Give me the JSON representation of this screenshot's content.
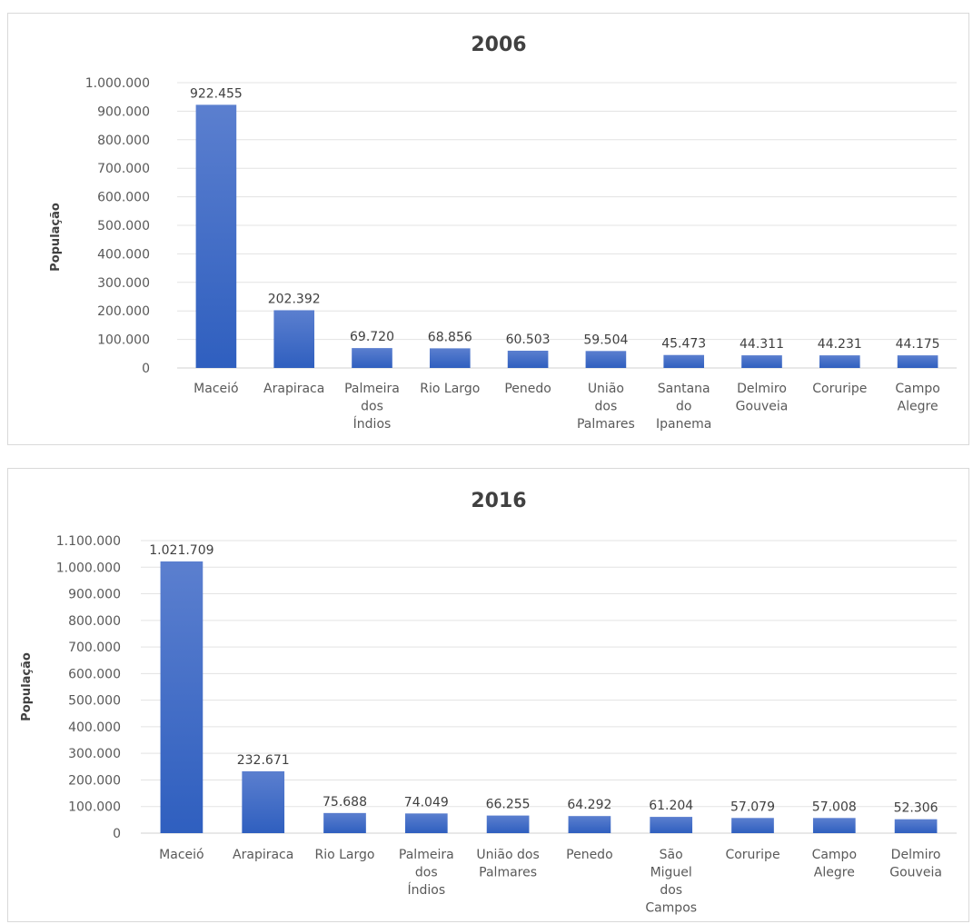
{
  "chart_data": [
    {
      "type": "bar",
      "title": "2006",
      "xlabel": "",
      "ylabel": "População",
      "ylim": [
        0,
        1000000
      ],
      "y_tick_step": 100000,
      "y_tick_labels": [
        "0",
        "100.000",
        "200.000",
        "300.000",
        "400.000",
        "500.000",
        "600.000",
        "700.000",
        "800.000",
        "900.000",
        "1.000.000"
      ],
      "categories": [
        "Maceió",
        "Arapiraca",
        "Palmeira dos Índios",
        "Rio Largo",
        "Penedo",
        "União dos Palmares",
        "Santana do Ipanema",
        "Delmiro Gouveia",
        "Coruripe",
        "Campo Alegre"
      ],
      "category_lines": [
        [
          "Maceió"
        ],
        [
          "Arapiraca"
        ],
        [
          "Palmeira",
          "dos",
          "Índios"
        ],
        [
          "Rio Largo"
        ],
        [
          "Penedo"
        ],
        [
          "União",
          "dos",
          "Palmares"
        ],
        [
          "Santana",
          "do",
          "Ipanema"
        ],
        [
          "Delmiro",
          "Gouveia"
        ],
        [
          "Coruripe"
        ],
        [
          "Campo",
          "Alegre"
        ]
      ],
      "values": [
        922455,
        202392,
        69720,
        68856,
        60503,
        59504,
        45473,
        44311,
        44231,
        44175
      ],
      "data_labels": [
        "922.455",
        "202.392",
        "69.720",
        "68.856",
        "60.503",
        "59.504",
        "45.473",
        "44.311",
        "44.231",
        "44.175"
      ],
      "grid": true,
      "legend": "none",
      "bar_color_top": "#5b7fcf",
      "bar_color_bottom": "#2f5fbf"
    },
    {
      "type": "bar",
      "title": "2016",
      "xlabel": "",
      "ylabel": "População",
      "ylim": [
        0,
        1100000
      ],
      "y_tick_step": 100000,
      "y_tick_labels": [
        "0",
        "100.000",
        "200.000",
        "300.000",
        "400.000",
        "500.000",
        "600.000",
        "700.000",
        "800.000",
        "900.000",
        "1.000.000",
        "1.100.000"
      ],
      "categories": [
        "Maceió",
        "Arapiraca",
        "Rio Largo",
        "Palmeira dos Índios",
        "União dos Palmares",
        "Penedo",
        "São Miguel dos Campos",
        "Coruripe",
        "Campo Alegre",
        "Delmiro Gouveia"
      ],
      "category_lines": [
        [
          "Maceió"
        ],
        [
          "Arapiraca"
        ],
        [
          "Rio Largo"
        ],
        [
          "Palmeira",
          "dos",
          "Índios"
        ],
        [
          "União dos",
          "Palmares"
        ],
        [
          "Penedo"
        ],
        [
          "São",
          "Miguel",
          "dos",
          "Campos"
        ],
        [
          "Coruripe"
        ],
        [
          "Campo",
          "Alegre"
        ],
        [
          "Delmiro",
          "Gouveia"
        ]
      ],
      "values": [
        1021709,
        232671,
        75688,
        74049,
        66255,
        64292,
        61204,
        57079,
        57008,
        52306
      ],
      "data_labels": [
        "1.021.709",
        "232.671",
        "75.688",
        "74.049",
        "66.255",
        "64.292",
        "61.204",
        "57.079",
        "57.008",
        "52.306"
      ],
      "grid": true,
      "legend": "none",
      "bar_color_top": "#5b7fcf",
      "bar_color_bottom": "#2f5fbf"
    }
  ]
}
